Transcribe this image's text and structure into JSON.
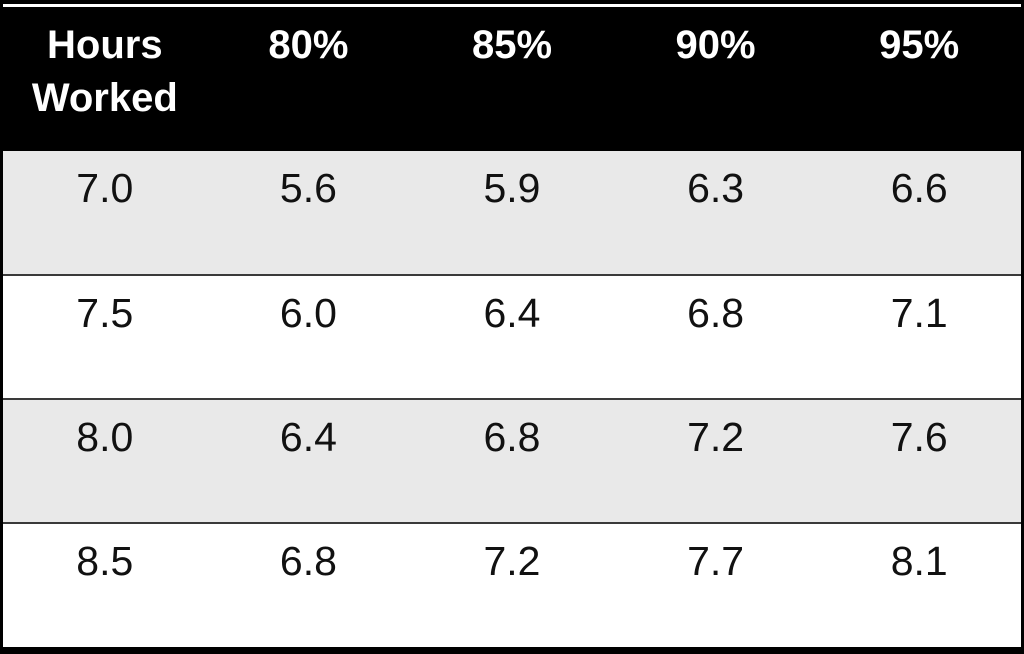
{
  "chart_data": {
    "type": "table",
    "columns": [
      "Hours Worked",
      "80%",
      "85%",
      "90%",
      "95%"
    ],
    "rows": [
      [
        "7.0",
        "5.6",
        "5.9",
        "6.3",
        "6.6"
      ],
      [
        "7.5",
        "6.0",
        "6.4",
        "6.8",
        "7.1"
      ],
      [
        "8.0",
        "6.4",
        "6.8",
        "7.2",
        "7.6"
      ],
      [
        "8.5",
        "6.8",
        "7.2",
        "7.7",
        "8.1"
      ]
    ],
    "layout_hints": {
      "header_style": "black background, white bold text",
      "row_banding": "alternating light-gray / white",
      "grid": "horizontal separators only"
    }
  },
  "colors": {
    "frame": "#000000",
    "header_bg": "#000000",
    "header_text": "#ffffff",
    "row_bg": "#ffffff",
    "row_alt_bg": "#e9e9e9",
    "row_border": "#3a3a3a"
  }
}
